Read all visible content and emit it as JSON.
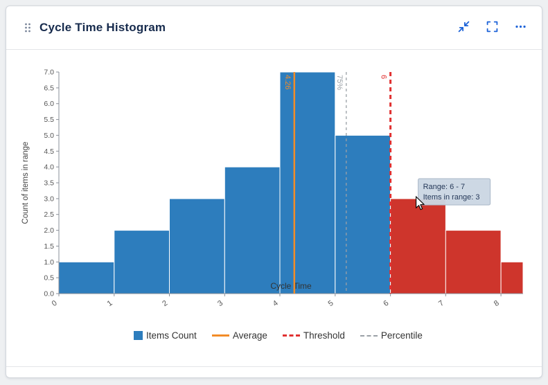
{
  "header": {
    "title": "Cycle Time Histogram"
  },
  "theme": {
    "title_color": "#172b4d",
    "icon_color": "#1d63d8",
    "card_background": "#ffffff",
    "page_background": "#eef0f2"
  },
  "chart_data": {
    "type": "bar",
    "title": "Cycle Time Histogram",
    "xlabel": "Cycle Time",
    "ylabel": "Count of items in range",
    "xlim": [
      0,
      8.4
    ],
    "ylim": [
      0,
      7
    ],
    "y_tick_step": 0.5,
    "x_ticks": [
      "0",
      "1",
      "2",
      "3",
      "4",
      "5",
      "6",
      "7",
      "8"
    ],
    "bins": [
      {
        "x0": 0,
        "x1": 1,
        "count": 1
      },
      {
        "x0": 1,
        "x1": 2,
        "count": 2
      },
      {
        "x0": 2,
        "x1": 3,
        "count": 3
      },
      {
        "x0": 3,
        "x1": 4,
        "count": 4
      },
      {
        "x0": 4,
        "x1": 5,
        "count": 7
      },
      {
        "x0": 5,
        "x1": 6,
        "count": 5
      },
      {
        "x0": 6,
        "x1": 7,
        "count": 3
      },
      {
        "x0": 7,
        "x1": 8,
        "count": 2
      },
      {
        "x0": 8,
        "x1": 8.4,
        "count": 1
      }
    ],
    "average": {
      "value": 4.26,
      "label": "4.26",
      "color": "#f28c28"
    },
    "percentile": {
      "value": 5.2,
      "label": "75%",
      "color": "#9aa0a6"
    },
    "threshold": {
      "value": 6,
      "label": "6",
      "color": "#e03131"
    },
    "colors": {
      "bar": "#2d7dbd",
      "over_threshold": "#ce352c"
    },
    "grid": false,
    "legend_position": "bottom"
  },
  "tooltip": {
    "line1": "Range: 6 - 7",
    "line2": "Items in range: 3"
  },
  "legend": [
    {
      "label": "Items Count",
      "type": "square",
      "color": "#2d7dbd"
    },
    {
      "label": "Average",
      "type": "line",
      "color": "#f28c28"
    },
    {
      "label": "Threshold",
      "type": "dashed-thick",
      "color": "#e03131"
    },
    {
      "label": "Percentile",
      "type": "dashed",
      "color": "#9aa0a6"
    }
  ]
}
